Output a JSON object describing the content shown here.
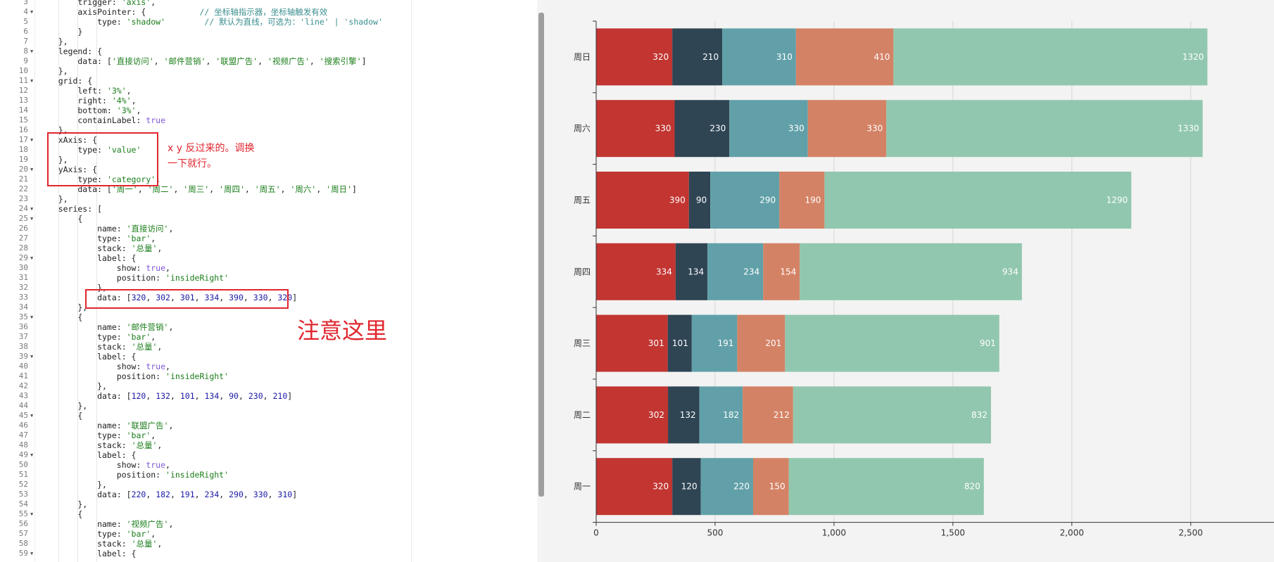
{
  "editor": {
    "lines": [
      {
        "n": "3",
        "fold": false,
        "html": "        trigger: <span class=\"str\">'axis'</span>,"
      },
      {
        "n": "4",
        "fold": true,
        "html": "        axisPointer: {           <span class=\"cm\">// 坐标轴指示器，坐标轴触发有效</span>"
      },
      {
        "n": "5",
        "fold": false,
        "html": "            type: <span class=\"str\">'shadow'</span>        <span class=\"cm\">// 默认为直线，可选为：'line' | 'shadow'</span>"
      },
      {
        "n": "6",
        "fold": false,
        "html": "        }"
      },
      {
        "n": "7",
        "fold": false,
        "html": "    },"
      },
      {
        "n": "8",
        "fold": true,
        "html": "    legend: {"
      },
      {
        "n": "9",
        "fold": false,
        "html": "        data: [<span class=\"str\">'直接访问'</span>, <span class=\"str\">'邮件营销'</span>, <span class=\"str\">'联盟广告'</span>, <span class=\"str\">'视频广告'</span>, <span class=\"str\">'搜索引擎'</span>]"
      },
      {
        "n": "10",
        "fold": false,
        "html": "    },"
      },
      {
        "n": "11",
        "fold": true,
        "html": "    grid: {"
      },
      {
        "n": "12",
        "fold": false,
        "html": "        left: <span class=\"str\">'3%'</span>,"
      },
      {
        "n": "13",
        "fold": false,
        "html": "        right: <span class=\"str\">'4%'</span>,"
      },
      {
        "n": "14",
        "fold": false,
        "html": "        bottom: <span class=\"str\">'3%'</span>,"
      },
      {
        "n": "15",
        "fold": false,
        "html": "        containLabel: <span class=\"kw\">true</span>"
      },
      {
        "n": "16",
        "fold": false,
        "html": "    },"
      },
      {
        "n": "17",
        "fold": true,
        "html": "    xAxis: {"
      },
      {
        "n": "18",
        "fold": false,
        "html": "        type: <span class=\"str\">'value'</span>"
      },
      {
        "n": "19",
        "fold": false,
        "html": "    },"
      },
      {
        "n": "20",
        "fold": true,
        "html": "    yAxis: {"
      },
      {
        "n": "21",
        "fold": false,
        "html": "        type: <span class=\"str\">'category'</span>,"
      },
      {
        "n": "22",
        "fold": false,
        "html": "        data: [<span class=\"str\">'周一'</span>, <span class=\"str\">'周二'</span>, <span class=\"str\">'周三'</span>, <span class=\"str\">'周四'</span>, <span class=\"str\">'周五'</span>, <span class=\"str\">'周六'</span>, <span class=\"str\">'周日'</span>]"
      },
      {
        "n": "23",
        "fold": false,
        "html": "    },"
      },
      {
        "n": "24",
        "fold": true,
        "html": "    series: ["
      },
      {
        "n": "25",
        "fold": true,
        "html": "        {"
      },
      {
        "n": "26",
        "fold": false,
        "html": "            name: <span class=\"str\">'直接访问'</span>,"
      },
      {
        "n": "27",
        "fold": false,
        "html": "            type: <span class=\"str\">'bar'</span>,"
      },
      {
        "n": "28",
        "fold": false,
        "html": "            stack: <span class=\"str\">'总量'</span>,"
      },
      {
        "n": "29",
        "fold": true,
        "html": "            label: {"
      },
      {
        "n": "30",
        "fold": false,
        "html": "                show: <span class=\"kw\">true</span>,"
      },
      {
        "n": "31",
        "fold": false,
        "html": "                position: <span class=\"str\">'insideRight'</span>"
      },
      {
        "n": "32",
        "fold": false,
        "html": "            },"
      },
      {
        "n": "33",
        "fold": false,
        "html": "            data: [<span class=\"num\">320</span>, <span class=\"num\">302</span>, <span class=\"num\">301</span>, <span class=\"num\">334</span>, <span class=\"num\">390</span>, <span class=\"num\">330</span>, <span class=\"num\">320</span>]"
      },
      {
        "n": "34",
        "fold": false,
        "html": "        },"
      },
      {
        "n": "35",
        "fold": true,
        "html": "        {"
      },
      {
        "n": "36",
        "fold": false,
        "html": "            name: <span class=\"str\">'邮件营销'</span>,"
      },
      {
        "n": "37",
        "fold": false,
        "html": "            type: <span class=\"str\">'bar'</span>,"
      },
      {
        "n": "38",
        "fold": false,
        "html": "            stack: <span class=\"str\">'总量'</span>,"
      },
      {
        "n": "39",
        "fold": true,
        "html": "            label: {"
      },
      {
        "n": "40",
        "fold": false,
        "html": "                show: <span class=\"kw\">true</span>,"
      },
      {
        "n": "41",
        "fold": false,
        "html": "                position: <span class=\"str\">'insideRight'</span>"
      },
      {
        "n": "42",
        "fold": false,
        "html": "            },"
      },
      {
        "n": "43",
        "fold": false,
        "html": "            data: [<span class=\"num\">120</span>, <span class=\"num\">132</span>, <span class=\"num\">101</span>, <span class=\"num\">134</span>, <span class=\"num\">90</span>, <span class=\"num\">230</span>, <span class=\"num\">210</span>]"
      },
      {
        "n": "44",
        "fold": false,
        "html": "        },"
      },
      {
        "n": "45",
        "fold": true,
        "html": "        {"
      },
      {
        "n": "46",
        "fold": false,
        "html": "            name: <span class=\"str\">'联盟广告'</span>,"
      },
      {
        "n": "47",
        "fold": false,
        "html": "            type: <span class=\"str\">'bar'</span>,"
      },
      {
        "n": "48",
        "fold": false,
        "html": "            stack: <span class=\"str\">'总量'</span>,"
      },
      {
        "n": "49",
        "fold": true,
        "html": "            label: {"
      },
      {
        "n": "50",
        "fold": false,
        "html": "                show: <span class=\"kw\">true</span>,"
      },
      {
        "n": "51",
        "fold": false,
        "html": "                position: <span class=\"str\">'insideRight'</span>"
      },
      {
        "n": "52",
        "fold": false,
        "html": "            },"
      },
      {
        "n": "53",
        "fold": false,
        "html": "            data: [<span class=\"num\">220</span>, <span class=\"num\">182</span>, <span class=\"num\">191</span>, <span class=\"num\">234</span>, <span class=\"num\">290</span>, <span class=\"num\">330</span>, <span class=\"num\">310</span>]"
      },
      {
        "n": "54",
        "fold": false,
        "html": "        },"
      },
      {
        "n": "55",
        "fold": true,
        "html": "        {"
      },
      {
        "n": "56",
        "fold": false,
        "html": "            name: <span class=\"str\">'视频广告'</span>,"
      },
      {
        "n": "57",
        "fold": false,
        "html": "            type: <span class=\"str\">'bar'</span>,"
      },
      {
        "n": "58",
        "fold": false,
        "html": "            stack: <span class=\"str\">'总量'</span>,"
      },
      {
        "n": "59",
        "fold": true,
        "html": "            label: {"
      }
    ]
  },
  "annotations": {
    "swap_note_line1": "x y 反过来的。调换",
    "swap_note_line2": "一下就行。",
    "attention_note": "注意这里",
    "color": "#e0262e"
  },
  "chart_data": {
    "type": "bar",
    "orientation": "horizontal",
    "stacked": true,
    "categories": [
      "周一",
      "周二",
      "周三",
      "周四",
      "周五",
      "周六",
      "周日"
    ],
    "series": [
      {
        "name": "直接访问",
        "color": "#c23531",
        "values": [
          320,
          302,
          301,
          334,
          390,
          330,
          320
        ]
      },
      {
        "name": "邮件营销",
        "color": "#2f4554",
        "values": [
          120,
          132,
          101,
          134,
          90,
          230,
          210
        ]
      },
      {
        "name": "联盟广告",
        "color": "#61a0a8",
        "values": [
          220,
          182,
          191,
          234,
          290,
          330,
          310
        ]
      },
      {
        "name": "视频广告",
        "color": "#d48265",
        "values": [
          150,
          212,
          201,
          154,
          190,
          330,
          410
        ]
      },
      {
        "name": "搜索引擎",
        "color": "#91c7ae",
        "values": [
          820,
          832,
          901,
          934,
          1290,
          1330,
          1320
        ]
      }
    ],
    "xticks": [
      0,
      500,
      1000,
      1500,
      2000,
      2500
    ],
    "xtick_labels": [
      "0",
      "500",
      "1,000",
      "1,500",
      "2,000",
      "2,500"
    ],
    "xlim": [
      0,
      2850
    ],
    "grid": true,
    "labels_inside_right": true
  }
}
